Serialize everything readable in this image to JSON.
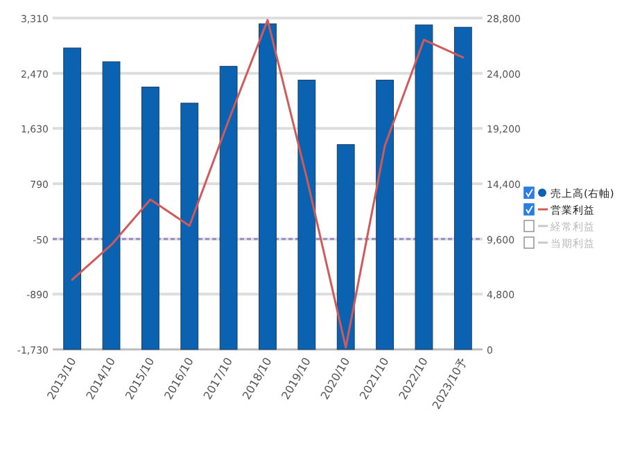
{
  "chart_data": {
    "type": "bar",
    "categories": [
      "2013/10",
      "2014/10",
      "2015/10",
      "2016/10",
      "2017/10",
      "2018/10",
      "2019/10",
      "2020/10",
      "2021/10",
      "2022/10",
      "2023/10予"
    ],
    "series": [
      {
        "name": "売上高(右軸)",
        "color": "#0b62b0",
        "axis": "y2",
        "values": [
          26200,
          25000,
          22800,
          21400,
          24600,
          28300,
          23400,
          17800,
          23400,
          28200,
          28000
        ]
      },
      {
        "name": "営業利益",
        "color": "#d05a5a",
        "type": "line",
        "values": [
          -670,
          -140,
          550,
          150,
          1750,
          3280,
          880,
          -1700,
          1370,
          2980,
          2710
        ]
      },
      {
        "name": "経常利益",
        "color": "#c8c8c8",
        "type": "line",
        "values": [
          null,
          null,
          null,
          null,
          null,
          null,
          null,
          null,
          null,
          null,
          null
        ]
      },
      {
        "name": "当期利益",
        "color": "#c8c8c8",
        "type": "line",
        "values": [
          null,
          null,
          null,
          null,
          null,
          null,
          null,
          null,
          null,
          null,
          null
        ]
      }
    ],
    "ylim": [
      -1730,
      3310
    ],
    "yticks": [
      {
        "value": -1730,
        "label": "-1,730"
      },
      -890,
      -50,
      790,
      {
        "value": 1630,
        "label": "1,630"
      },
      {
        "value": 2470,
        "label": "2,470"
      },
      {
        "value": 3310,
        "label": "3,310"
      }
    ],
    "y2lim": [
      0,
      28800
    ],
    "y2ticks": [
      0,
      {
        "value": 4800,
        "label": "4,800"
      },
      {
        "value": 9600,
        "label": "9,600"
      },
      {
        "value": 14400,
        "label": "14,400"
      },
      {
        "value": 19200,
        "label": "19,200"
      },
      {
        "value": 24000,
        "label": "24,000"
      },
      {
        "value": 28800,
        "label": "28,800"
      }
    ],
    "ref_lines": [
      {
        "axis": "y",
        "value": -50,
        "color": "#9b8cc4",
        "line_style": "dashed"
      }
    ],
    "grid": "y",
    "legend": "right"
  }
}
